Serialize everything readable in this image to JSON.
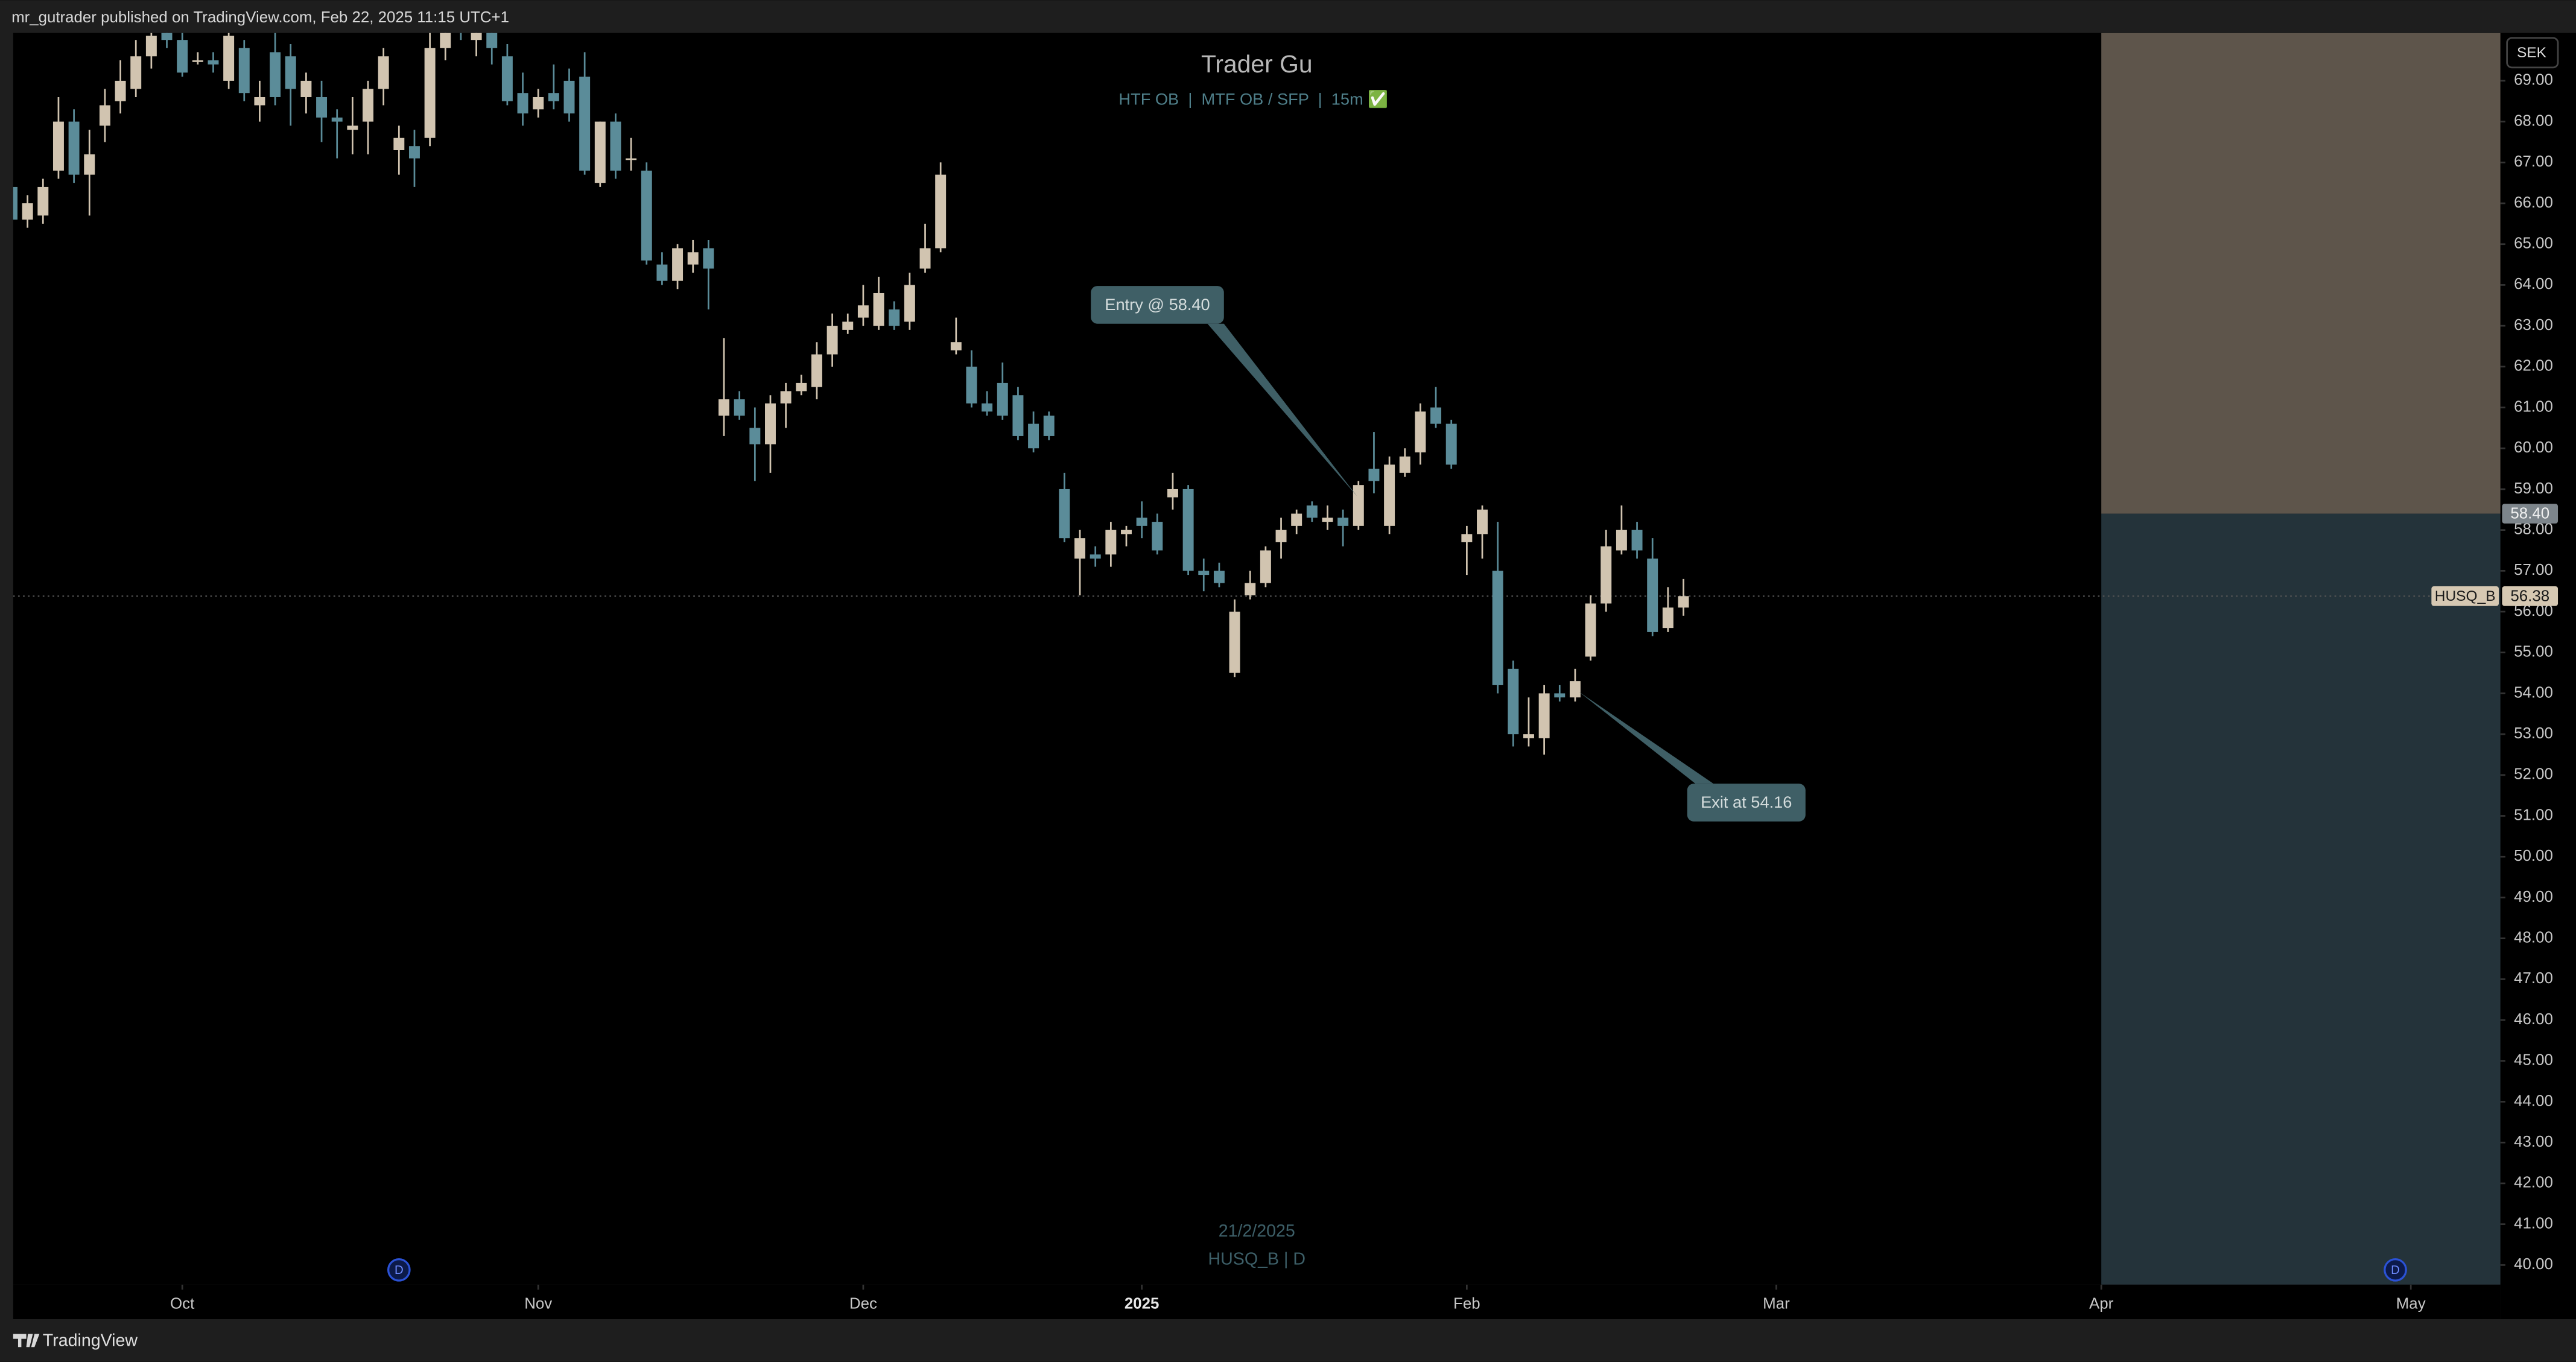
{
  "header": {
    "text": "mr_gutrader published on TradingView.com, Feb 22, 2025 11:15 UTC+1"
  },
  "footer": {
    "brand": "TradingView"
  },
  "chart_data": {
    "type": "candlestick",
    "title": "Trader Gu",
    "subtitle": "HTF OB  |  MTF OB / SFP  |  15m ✅",
    "currency": "SEK",
    "watermark": [
      "21/2/2025",
      "HUSQ_B | D"
    ],
    "up_color": "#d1c4b0",
    "down_color": "#5b8c99",
    "xlim": [
      -10.93,
      149.79
    ],
    "ylim": [
      39.52,
      70.17
    ],
    "xticks": [
      {
        "value": 0,
        "label": "Oct"
      },
      {
        "value": 23,
        "label": "Nov"
      },
      {
        "value": 44,
        "label": "Dec"
      },
      {
        "value": 62,
        "label": "2025"
      },
      {
        "value": 83,
        "label": "Feb"
      },
      {
        "value": 103,
        "label": "Mar"
      },
      {
        "value": 124,
        "label": "Apr"
      },
      {
        "value": 144,
        "label": "May"
      }
    ],
    "yticks": [
      {
        "value": 40,
        "label": "40.00"
      },
      {
        "value": 41,
        "label": "41.00"
      },
      {
        "value": 42,
        "label": "42.00"
      },
      {
        "value": 43,
        "label": "43.00"
      },
      {
        "value": 44,
        "label": "44.00"
      },
      {
        "value": 45,
        "label": "45.00"
      },
      {
        "value": 46,
        "label": "46.00"
      },
      {
        "value": 47,
        "label": "47.00"
      },
      {
        "value": 48,
        "label": "48.00"
      },
      {
        "value": 49,
        "label": "49.00"
      },
      {
        "value": 50,
        "label": "50.00"
      },
      {
        "value": 51,
        "label": "51.00"
      },
      {
        "value": 52,
        "label": "52.00"
      },
      {
        "value": 53,
        "label": "53.00"
      },
      {
        "value": 54,
        "label": "54.00"
      },
      {
        "value": 55,
        "label": "55.00"
      },
      {
        "value": 56,
        "label": "56.00"
      },
      {
        "value": 57,
        "label": "57.00"
      },
      {
        "value": 58,
        "label": "58.00"
      },
      {
        "value": 59,
        "label": "59.00"
      },
      {
        "value": 60,
        "label": "60.00"
      },
      {
        "value": 61,
        "label": "61.00"
      },
      {
        "value": 62,
        "label": "62.00"
      },
      {
        "value": 63,
        "label": "63.00"
      },
      {
        "value": 64,
        "label": "64.00"
      },
      {
        "value": 65,
        "label": "65.00"
      },
      {
        "value": 66,
        "label": "66.00"
      },
      {
        "value": 67,
        "label": "67.00"
      },
      {
        "value": 68,
        "label": "68.00"
      },
      {
        "value": 69,
        "label": "69.00"
      }
    ],
    "x": [
      -11,
      -10,
      -9,
      -8,
      -7,
      -6,
      -5,
      -4,
      -3,
      -2,
      -1,
      0,
      1,
      2,
      3,
      4,
      5,
      6,
      7,
      8,
      9,
      10,
      11,
      12,
      13,
      14,
      15,
      16,
      17,
      18,
      19,
      20,
      21,
      22,
      23,
      24,
      25,
      26,
      27,
      28,
      29,
      30,
      31,
      32,
      33,
      34,
      35,
      36,
      37,
      38,
      39,
      40,
      41,
      42,
      43,
      44,
      45,
      46,
      47,
      48,
      49,
      50,
      51,
      52,
      53,
      54,
      55,
      56,
      57,
      58,
      59,
      60,
      61,
      62,
      63,
      64,
      65,
      66,
      67,
      68,
      69,
      70,
      71,
      72,
      73,
      74,
      75,
      76,
      77,
      78,
      79,
      80,
      81,
      82,
      83,
      84,
      85,
      86,
      87,
      88,
      89,
      90,
      91,
      92,
      93,
      94,
      95,
      96,
      97
    ],
    "open": [
      66.4,
      65.6,
      65.7,
      66.8,
      68.0,
      66.7,
      67.9,
      68.5,
      68.8,
      69.6,
      70.3,
      70.0,
      69.5,
      69.5,
      69.0,
      69.8,
      68.4,
      69.7,
      69.6,
      68.6,
      68.6,
      68.1,
      67.8,
      68.0,
      68.8,
      67.3,
      67.4,
      67.6,
      69.8,
      70.4,
      70.0,
      70.2,
      69.6,
      68.7,
      68.3,
      68.7,
      69.0,
      69.1,
      66.5,
      68.0,
      67.1,
      66.8,
      64.5,
      64.1,
      64.5,
      64.9,
      60.8,
      61.2,
      60.5,
      60.1,
      61.1,
      61.4,
      61.5,
      62.3,
      62.9,
      63.2,
      63.0,
      63.4,
      63.1,
      64.4,
      64.9,
      62.4,
      62.0,
      61.1,
      61.6,
      61.3,
      60.6,
      60.8,
      59.0,
      57.3,
      57.4,
      57.4,
      57.9,
      58.3,
      58.2,
      58.8,
      59.0,
      57.0,
      57.0,
      54.5,
      56.4,
      56.7,
      57.7,
      58.1,
      58.6,
      58.2,
      58.3,
      58.1,
      59.5,
      58.1,
      59.4,
      59.9,
      61.0,
      60.6,
      57.7,
      57.9,
      57.0,
      54.6,
      52.9,
      52.9,
      54.0,
      53.9,
      54.9,
      56.2,
      57.5,
      58.0,
      57.3,
      55.6,
      56.1
    ],
    "high": [
      66.8,
      66.2,
      66.6,
      68.6,
      68.3,
      67.8,
      68.8,
      69.5,
      70.0,
      70.4,
      70.6,
      70.3,
      69.7,
      69.7,
      70.4,
      70.0,
      69.0,
      70.2,
      69.9,
      69.2,
      69.0,
      68.3,
      68.6,
      69.0,
      69.8,
      67.9,
      67.8,
      70.4,
      70.6,
      70.6,
      70.5,
      70.5,
      69.9,
      69.2,
      68.8,
      69.4,
      69.3,
      69.7,
      68.0,
      68.2,
      67.6,
      67.0,
      64.8,
      65.0,
      65.1,
      65.1,
      62.7,
      61.4,
      61.0,
      61.3,
      61.6,
      61.8,
      62.6,
      63.3,
      63.3,
      64.0,
      64.2,
      63.6,
      64.3,
      65.5,
      67.0,
      63.2,
      62.4,
      61.4,
      62.1,
      61.5,
      60.9,
      60.9,
      59.4,
      58.0,
      57.6,
      58.2,
      58.1,
      58.7,
      58.4,
      59.4,
      59.1,
      57.3,
      57.2,
      56.3,
      57.0,
      57.6,
      58.3,
      58.5,
      58.7,
      58.6,
      58.5,
      59.2,
      60.4,
      59.8,
      60.0,
      61.1,
      61.5,
      60.7,
      58.1,
      58.6,
      58.2,
      54.8,
      53.9,
      54.2,
      54.2,
      54.6,
      56.4,
      58.0,
      58.6,
      58.2,
      57.8,
      56.6,
      56.8
    ],
    "low": [
      65.5,
      65.4,
      65.5,
      66.6,
      66.5,
      65.7,
      67.5,
      68.2,
      68.6,
      69.3,
      69.8,
      69.1,
      69.4,
      69.2,
      68.8,
      68.5,
      68.0,
      68.4,
      67.9,
      68.2,
      67.5,
      67.1,
      67.2,
      67.2,
      68.4,
      66.7,
      66.4,
      67.4,
      69.5,
      70.0,
      69.6,
      69.4,
      68.4,
      67.9,
      68.1,
      68.3,
      68.0,
      66.7,
      66.4,
      66.6,
      66.8,
      64.5,
      64.0,
      63.9,
      64.3,
      63.4,
      60.3,
      60.7,
      59.2,
      59.4,
      60.5,
      61.3,
      61.2,
      62.0,
      62.8,
      63.0,
      62.9,
      62.9,
      62.9,
      64.3,
      64.8,
      62.3,
      61.0,
      60.8,
      60.7,
      60.2,
      59.9,
      60.2,
      57.7,
      56.4,
      57.1,
      57.1,
      57.6,
      57.8,
      57.4,
      58.5,
      56.9,
      56.5,
      56.6,
      54.4,
      56.3,
      56.6,
      57.3,
      57.9,
      58.2,
      58.0,
      57.6,
      58.0,
      58.9,
      57.9,
      59.3,
      59.6,
      60.5,
      59.5,
      56.9,
      57.3,
      54.0,
      52.7,
      52.7,
      52.5,
      53.8,
      53.8,
      54.8,
      56.0,
      57.4,
      57.3,
      55.4,
      55.5,
      55.9
    ],
    "close": [
      65.6,
      66.0,
      66.4,
      68.0,
      66.7,
      67.2,
      68.4,
      69.0,
      69.6,
      70.1,
      70.0,
      69.2,
      69.5,
      69.4,
      70.1,
      68.7,
      68.6,
      68.6,
      68.8,
      69.0,
      68.1,
      68.0,
      67.9,
      68.8,
      69.6,
      67.6,
      67.1,
      69.8,
      70.4,
      70.2,
      70.3,
      69.8,
      68.5,
      68.2,
      68.6,
      68.5,
      68.2,
      66.8,
      68.0,
      66.8,
      67.1,
      64.6,
      64.1,
      64.9,
      64.8,
      64.4,
      61.2,
      60.8,
      60.1,
      61.1,
      61.4,
      61.6,
      62.3,
      63.0,
      63.1,
      63.5,
      63.8,
      63.0,
      64.0,
      64.9,
      66.7,
      62.6,
      61.1,
      60.9,
      60.8,
      60.3,
      60.0,
      60.3,
      57.8,
      57.8,
      57.3,
      58.0,
      58.0,
      58.1,
      57.5,
      59.0,
      57.0,
      56.9,
      56.7,
      56.0,
      56.7,
      57.5,
      58.0,
      58.4,
      58.3,
      58.3,
      58.1,
      59.1,
      59.2,
      59.6,
      59.8,
      60.9,
      60.6,
      59.6,
      57.9,
      58.5,
      54.2,
      53.0,
      53.0,
      54.0,
      53.9,
      54.3,
      56.2,
      57.6,
      58.0,
      57.5,
      55.5,
      56.1,
      56.38
    ],
    "annotations": [
      {
        "text": "Entry @ 58.40"
      },
      {
        "text": "Exit at 54.16"
      }
    ],
    "position": {
      "entry": 58.4,
      "x": [
        124,
        149.79
      ],
      "stop_color": "#5e554b",
      "target_color": "#24333a"
    },
    "price_labels": [
      {
        "value": 58.4,
        "label": "58.40",
        "color": "#7d858b"
      },
      {
        "value": 56.38,
        "label": "56.38",
        "name": "HUSQ_B",
        "color": "#d6c8b2"
      }
    ],
    "event_markers": [
      {
        "x": 14,
        "label": "D"
      },
      {
        "x": 143,
        "label": "D"
      }
    ]
  }
}
